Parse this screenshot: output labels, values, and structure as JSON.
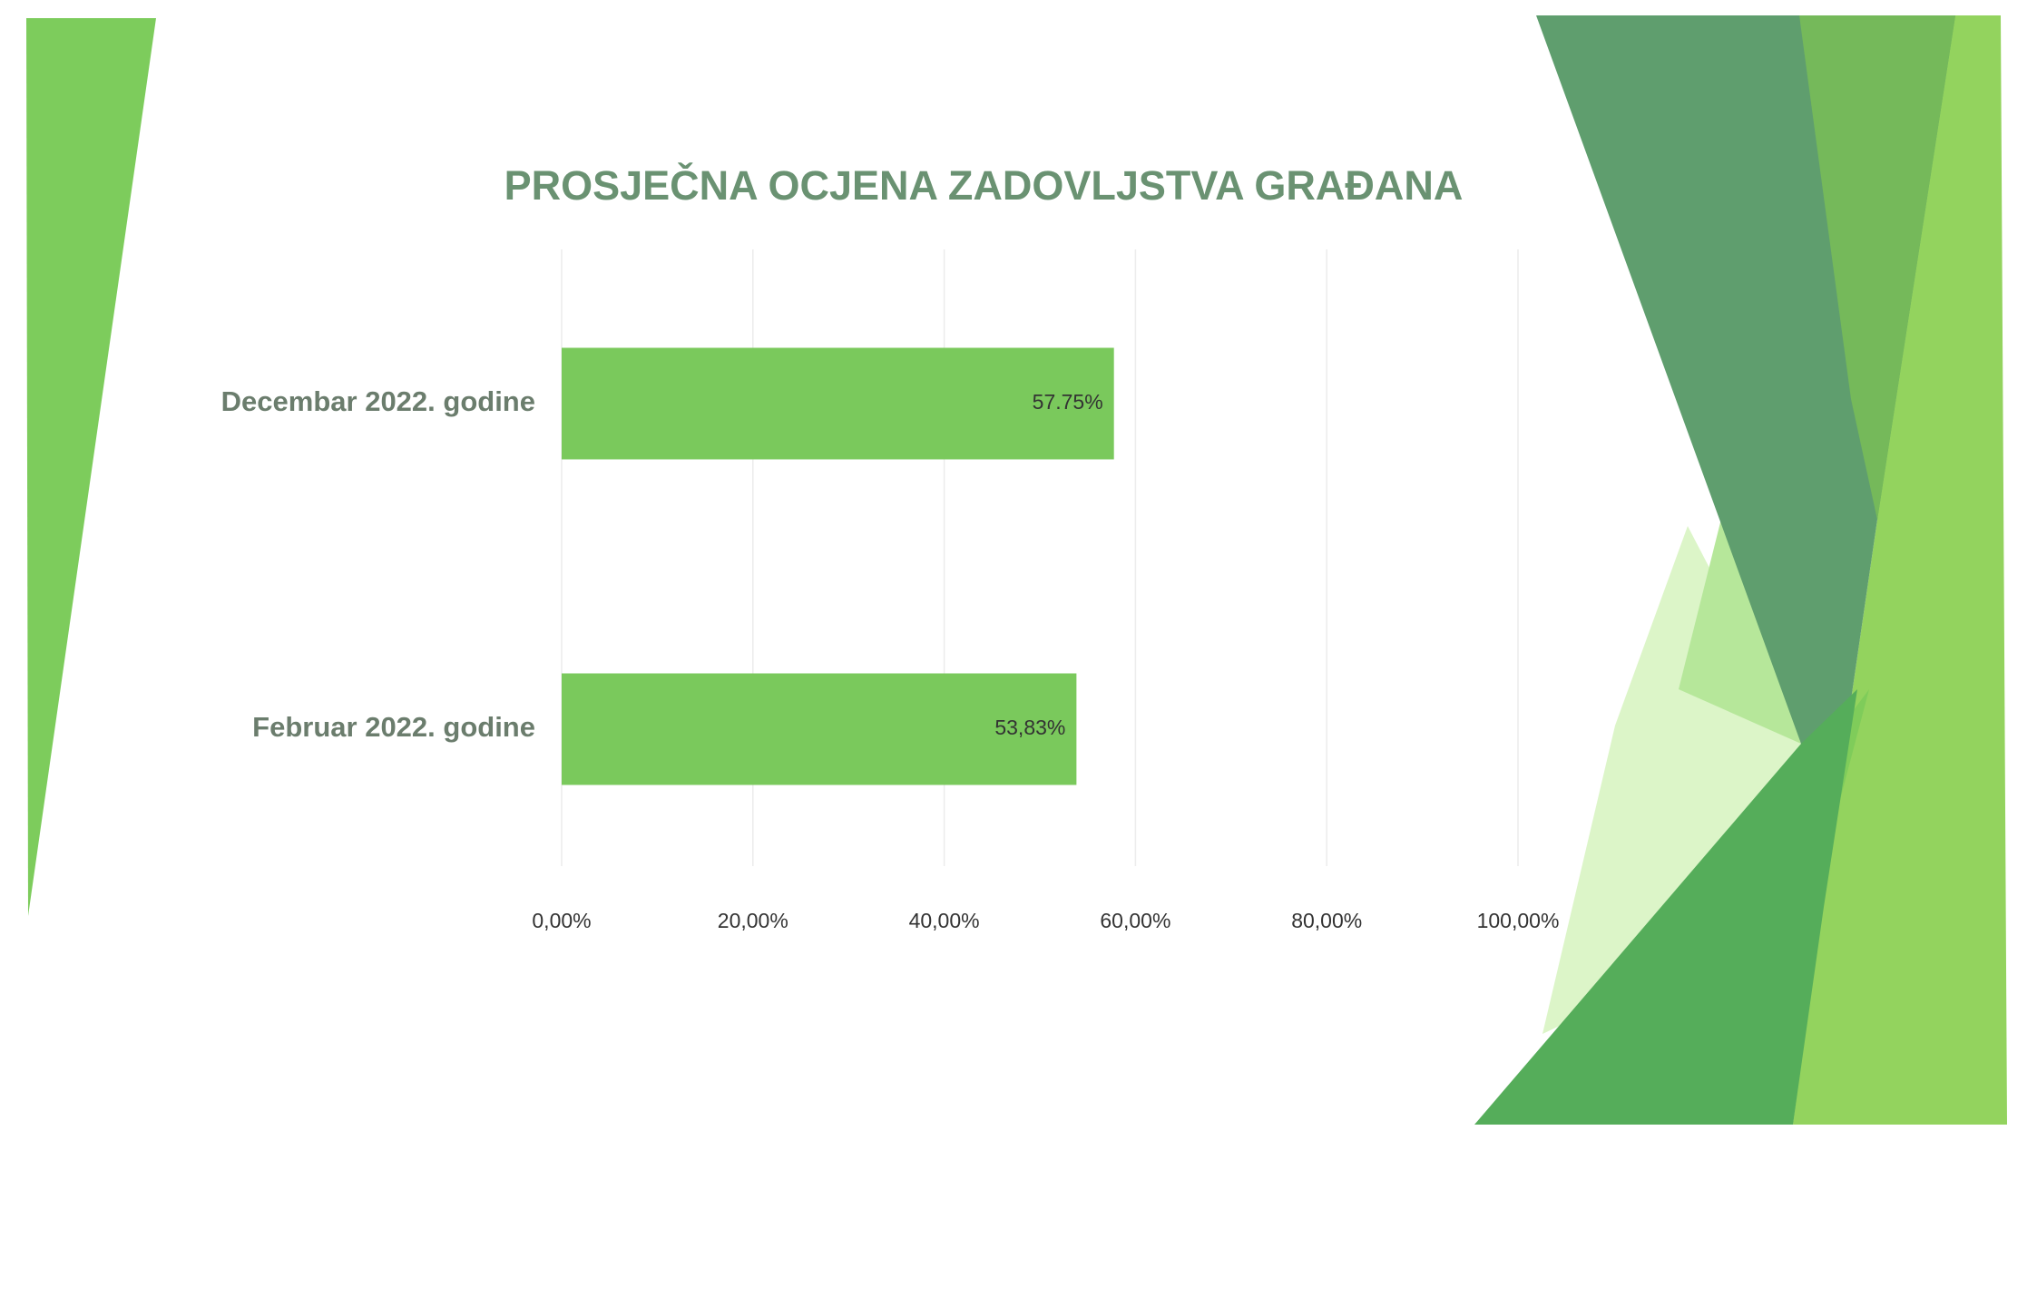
{
  "chart_data": {
    "type": "bar",
    "orientation": "horizontal",
    "title": "PROSJEČNA OCJENA ZADOVLJSTVA GRAĐANA",
    "categories": [
      "Decembar 2022. godine",
      "Februar 2022. godine"
    ],
    "values": [
      57.75,
      53.83
    ],
    "value_labels": [
      "57.75%",
      "53,83%"
    ],
    "color": "#7ac95c",
    "xlim": [
      0,
      100
    ],
    "xticks": [
      {
        "value": 0,
        "label": "0,00%"
      },
      {
        "value": 20,
        "label": "20,00%"
      },
      {
        "value": 40,
        "label": "40,00%"
      },
      {
        "value": 60,
        "label": "60,00%"
      },
      {
        "value": 80,
        "label": "80,00%"
      },
      {
        "value": 100,
        "label": "100,00%"
      }
    ],
    "grid": true
  }
}
